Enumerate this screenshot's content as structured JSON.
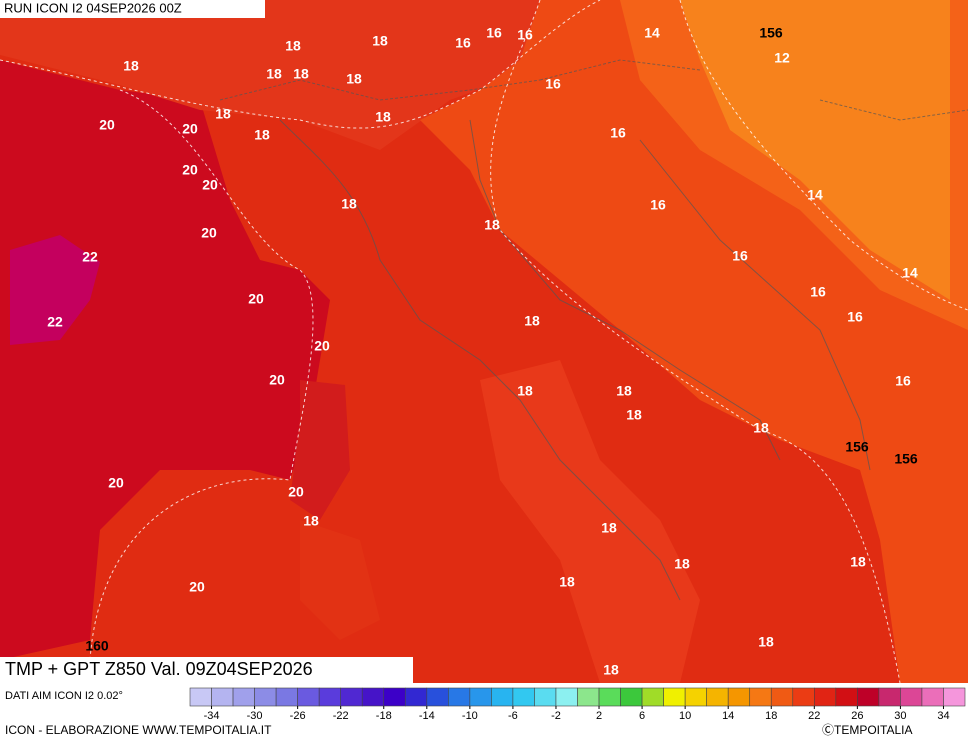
{
  "header": {
    "run": "RUN ICON I2 04SEP2026 00Z"
  },
  "title": "TMP + GPT Z850 Val. 09Z04SEP2026",
  "source": "DATI AIM ICON I2 0.02°",
  "credit": "ICON - ELABORAZIONE WWW.TEMPOITALIA.IT",
  "copyright": "ⒸTEMPOITALIA",
  "contour_labels": [
    18,
    18,
    16,
    16,
    16,
    14,
    156,
    12,
    18,
    18,
    18,
    18,
    16,
    20,
    20,
    18,
    18,
    18,
    16,
    20,
    20,
    14,
    18,
    18,
    16,
    20,
    22,
    16,
    14,
    20,
    16,
    16,
    22,
    18,
    20,
    20,
    16,
    18,
    18,
    18,
    18,
    156,
    156,
    20,
    20,
    18,
    18,
    18,
    18,
    18,
    20,
    18,
    160,
    18
  ],
  "colorbar": {
    "ticks": [
      -34,
      -30,
      -26,
      -22,
      -18,
      -14,
      -10,
      -6,
      -2,
      2,
      6,
      10,
      14,
      18,
      22,
      26,
      30,
      34
    ],
    "colors": [
      "#c8c8f5",
      "#b4b4f0",
      "#a0a0eb",
      "#8c8ce6",
      "#7a78e3",
      "#6a5ae0",
      "#5a3cdc",
      "#5028d2",
      "#4614c8",
      "#3c00c8",
      "#3228d2",
      "#2850dc",
      "#2878e6",
      "#2896eb",
      "#28b4f0",
      "#32c8f0",
      "#5adcf0",
      "#8cf0f0",
      "#8ce68c",
      "#5adc5a",
      "#3cc83c",
      "#a0dc28",
      "#f0f000",
      "#f5d200",
      "#f5b400",
      "#f59600",
      "#f57814",
      "#f05a14",
      "#eb3c14",
      "#e12414",
      "#d20f14",
      "#be0028",
      "#c8286e",
      "#dc4696",
      "#eb6eb9",
      "#f596dc"
    ]
  }
}
